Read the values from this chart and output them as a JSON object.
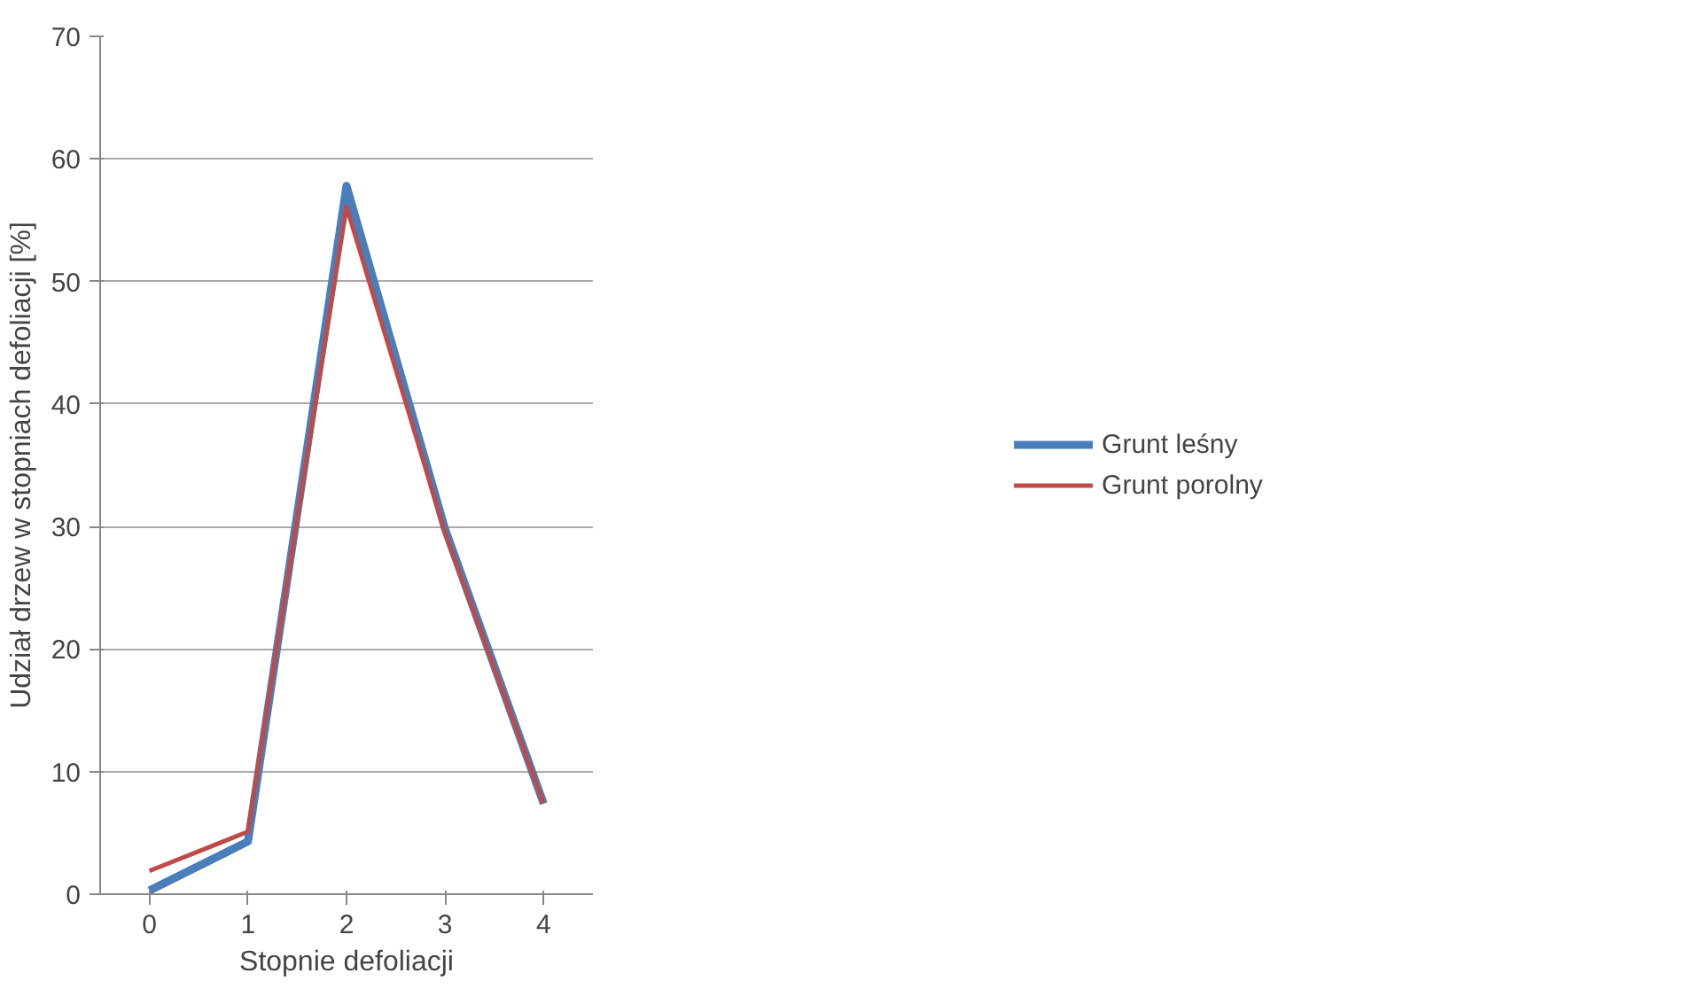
{
  "chart_data": {
    "type": "line",
    "xlabel": "Stopnie defoliacji",
    "ylabel": "Udział drzew w stopniach defoliacji [%]",
    "categories": [
      "0",
      "1",
      "2",
      "3",
      "4"
    ],
    "series": [
      {
        "name": "Grunt leśny",
        "color": "#4a7ebb",
        "values": [
          0.3,
          4.3,
          57.8,
          29.8,
          7.4
        ]
      },
      {
        "name": "Grunt porolny",
        "color": "#be4b48",
        "values": [
          1.9,
          5.1,
          56.1,
          29.5,
          7.4
        ]
      }
    ],
    "ylim": [
      0,
      70
    ],
    "yticks": [
      0,
      10,
      20,
      30,
      40,
      50,
      60,
      70
    ],
    "grid": "y",
    "legend": "right",
    "marker": "none",
    "line_style": "solid"
  }
}
